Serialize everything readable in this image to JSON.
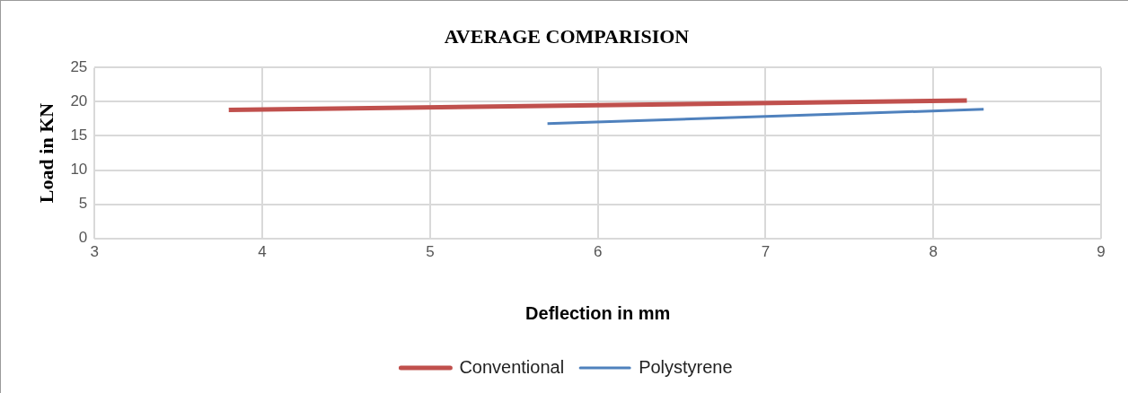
{
  "chart_data": {
    "type": "line",
    "title": "AVERAGE COMPARISION",
    "xlabel": "Deflection in mm",
    "ylabel": "Load in KN",
    "series": [
      {
        "name": "Conventional",
        "color": "#c0504d",
        "x": [
          3.8,
          8.2
        ],
        "values": [
          18.8,
          20.2
        ]
      },
      {
        "name": "Polystyrene",
        "color": "#4f81bd",
        "x": [
          5.7,
          8.3
        ],
        "values": [
          16.8,
          18.9
        ]
      }
    ],
    "xlim": [
      3,
      9
    ],
    "xticks": [
      3,
      4,
      5,
      6,
      7,
      8,
      9
    ],
    "ylim": [
      0,
      25
    ],
    "yticks": [
      0,
      5,
      10,
      15,
      20,
      25
    ],
    "grid": true,
    "legend": "bottom",
    "marker": "none",
    "line_style": "solid"
  }
}
